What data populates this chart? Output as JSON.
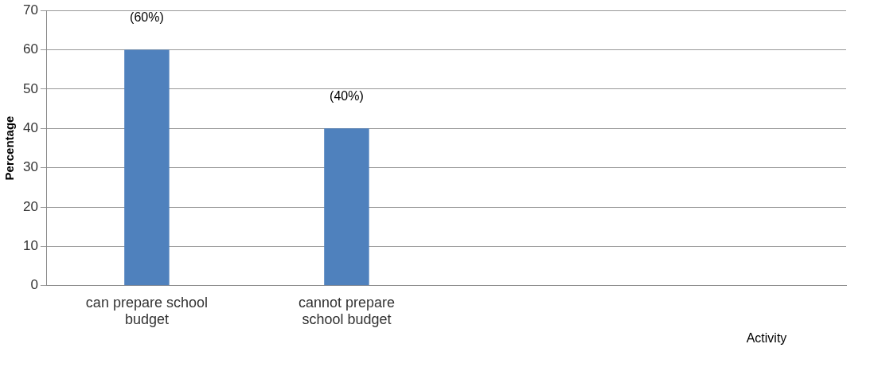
{
  "chart_data": {
    "type": "bar",
    "xlabel": "Activity",
    "ylabel": "Percentage",
    "categories": [
      "can prepare school budget",
      "cannot prepare school budget",
      null,
      null
    ],
    "values": [
      60,
      40,
      null,
      null
    ],
    "value_labels": [
      "(60%)",
      "(40%)",
      null,
      null
    ],
    "color": "#4f81bd",
    "ylim": [
      0,
      70
    ],
    "yticks": [
      0,
      10,
      20,
      30,
      40,
      50,
      60,
      70
    ],
    "grid": "y",
    "legend": false
  }
}
